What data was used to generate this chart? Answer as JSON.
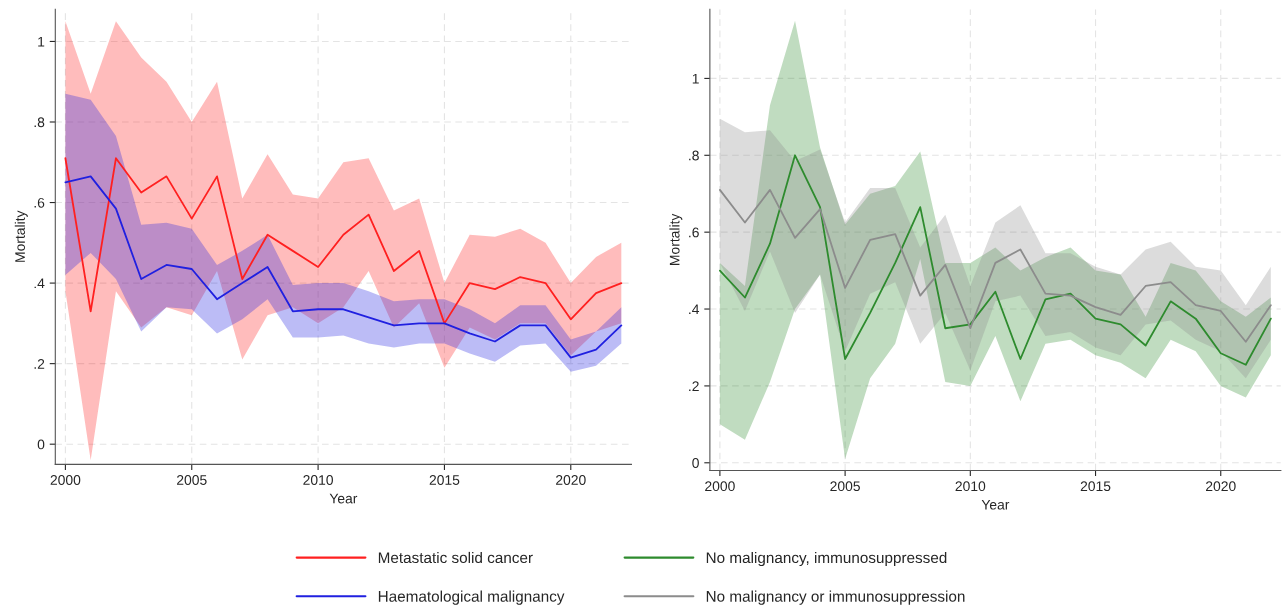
{
  "chart_data": [
    {
      "type": "line",
      "xlabel": "Year",
      "ylabel": "Mortality",
      "x": [
        2000,
        2001,
        2002,
        2003,
        2004,
        2005,
        2006,
        2007,
        2008,
        2009,
        2010,
        2011,
        2012,
        2013,
        2014,
        2015,
        2016,
        2017,
        2018,
        2019,
        2020,
        2021,
        2022
      ],
      "series": [
        {
          "name": "Metastatic solid cancer",
          "color": "#ff2020",
          "values": [
            0.71,
            0.33,
            0.71,
            0.625,
            0.665,
            0.56,
            0.665,
            0.41,
            0.52,
            0.48,
            0.44,
            0.52,
            0.57,
            0.43,
            0.48,
            0.3,
            0.4,
            0.385,
            0.415,
            0.4,
            0.31,
            0.375,
            0.4
          ],
          "upper": [
            1.05,
            0.87,
            1.05,
            0.96,
            0.9,
            0.8,
            0.9,
            0.61,
            0.72,
            0.62,
            0.61,
            0.7,
            0.71,
            0.58,
            0.61,
            0.4,
            0.52,
            0.515,
            0.535,
            0.5,
            0.4,
            0.465,
            0.5
          ],
          "lower": [
            0.38,
            -0.04,
            0.38,
            0.29,
            0.34,
            0.32,
            0.43,
            0.21,
            0.32,
            0.34,
            0.3,
            0.34,
            0.43,
            0.29,
            0.35,
            0.19,
            0.29,
            0.26,
            0.3,
            0.3,
            0.22,
            0.28,
            0.3
          ]
        },
        {
          "name": "Haematological malignancy",
          "color": "#2020e0",
          "values": [
            0.65,
            0.665,
            0.585,
            0.41,
            0.445,
            0.435,
            0.36,
            0.4,
            0.44,
            0.33,
            0.335,
            0.335,
            0.315,
            0.295,
            0.3,
            0.3,
            0.275,
            0.255,
            0.295,
            0.295,
            0.215,
            0.235,
            0.295
          ],
          "upper": [
            0.87,
            0.855,
            0.765,
            0.545,
            0.55,
            0.535,
            0.445,
            0.48,
            0.52,
            0.395,
            0.4,
            0.4,
            0.38,
            0.355,
            0.36,
            0.36,
            0.335,
            0.3,
            0.345,
            0.345,
            0.26,
            0.28,
            0.34
          ],
          "lower": [
            0.42,
            0.475,
            0.41,
            0.28,
            0.34,
            0.335,
            0.275,
            0.31,
            0.36,
            0.265,
            0.265,
            0.27,
            0.25,
            0.24,
            0.25,
            0.25,
            0.225,
            0.205,
            0.245,
            0.25,
            0.18,
            0.195,
            0.25
          ]
        }
      ],
      "xlim": [
        1999.6,
        2022.4
      ],
      "xticks": [
        2000,
        2005,
        2010,
        2015,
        2020
      ],
      "ylim": [
        -0.05,
        1.08
      ],
      "yticks": [
        0,
        {
          "value": 0.2,
          "label": ".2"
        },
        {
          "value": 0.4,
          "label": ".4"
        },
        {
          "value": 0.6,
          "label": ".6"
        },
        {
          "value": 0.8,
          "label": ".8"
        },
        1
      ],
      "grid": true,
      "legend": "bottom",
      "line_style": "solid"
    },
    {
      "type": "line",
      "xlabel": "Year",
      "ylabel": "Mortality",
      "x": [
        2000,
        2001,
        2002,
        2003,
        2004,
        2005,
        2006,
        2007,
        2008,
        2009,
        2010,
        2011,
        2012,
        2013,
        2014,
        2015,
        2016,
        2017,
        2018,
        2019,
        2020,
        2021,
        2022
      ],
      "series": [
        {
          "name": "No malignancy, immunosuppressed",
          "color": "#2e8b2e",
          "values": [
            0.5,
            0.43,
            0.57,
            0.8,
            0.665,
            0.27,
            0.39,
            0.52,
            0.665,
            0.35,
            0.36,
            0.445,
            0.27,
            0.425,
            0.44,
            0.375,
            0.36,
            0.305,
            0.42,
            0.375,
            0.285,
            0.255,
            0.375
          ],
          "upper": [
            0.52,
            0.46,
            0.93,
            1.15,
            0.82,
            0.62,
            0.7,
            0.72,
            0.81,
            0.52,
            0.52,
            0.56,
            0.5,
            0.535,
            0.56,
            0.5,
            0.49,
            0.38,
            0.52,
            0.5,
            0.42,
            0.38,
            0.43
          ],
          "lower": [
            0.1,
            0.06,
            0.21,
            0.4,
            0.49,
            0.01,
            0.22,
            0.31,
            0.53,
            0.21,
            0.2,
            0.33,
            0.16,
            0.31,
            0.32,
            0.28,
            0.26,
            0.22,
            0.32,
            0.29,
            0.2,
            0.17,
            0.28
          ]
        },
        {
          "name": "No malignancy or immunosuppression",
          "color": "#8c8c8c",
          "values": [
            0.71,
            0.625,
            0.71,
            0.585,
            0.66,
            0.455,
            0.58,
            0.595,
            0.435,
            0.515,
            0.35,
            0.52,
            0.555,
            0.44,
            0.435,
            0.405,
            0.385,
            0.46,
            0.47,
            0.41,
            0.395,
            0.315,
            0.41
          ],
          "upper": [
            0.895,
            0.86,
            0.865,
            0.785,
            0.815,
            0.625,
            0.715,
            0.715,
            0.56,
            0.645,
            0.46,
            0.625,
            0.67,
            0.545,
            0.545,
            0.51,
            0.49,
            0.555,
            0.575,
            0.51,
            0.5,
            0.41,
            0.51
          ],
          "lower": [
            0.52,
            0.395,
            0.55,
            0.39,
            0.49,
            0.29,
            0.44,
            0.47,
            0.31,
            0.39,
            0.24,
            0.42,
            0.435,
            0.33,
            0.34,
            0.3,
            0.28,
            0.36,
            0.37,
            0.32,
            0.29,
            0.22,
            0.32
          ]
        }
      ],
      "xlim": [
        1999.6,
        2022.4
      ],
      "xticks": [
        2000,
        2005,
        2010,
        2015,
        2020
      ],
      "ylim": [
        -0.02,
        1.18
      ],
      "yticks": [
        0,
        {
          "value": 0.2,
          "label": ".2"
        },
        {
          "value": 0.4,
          "label": ".4"
        },
        {
          "value": 0.6,
          "label": ".6"
        },
        {
          "value": 0.8,
          "label": ".8"
        },
        1
      ],
      "grid": true,
      "legend": "bottom",
      "line_style": "solid"
    }
  ]
}
